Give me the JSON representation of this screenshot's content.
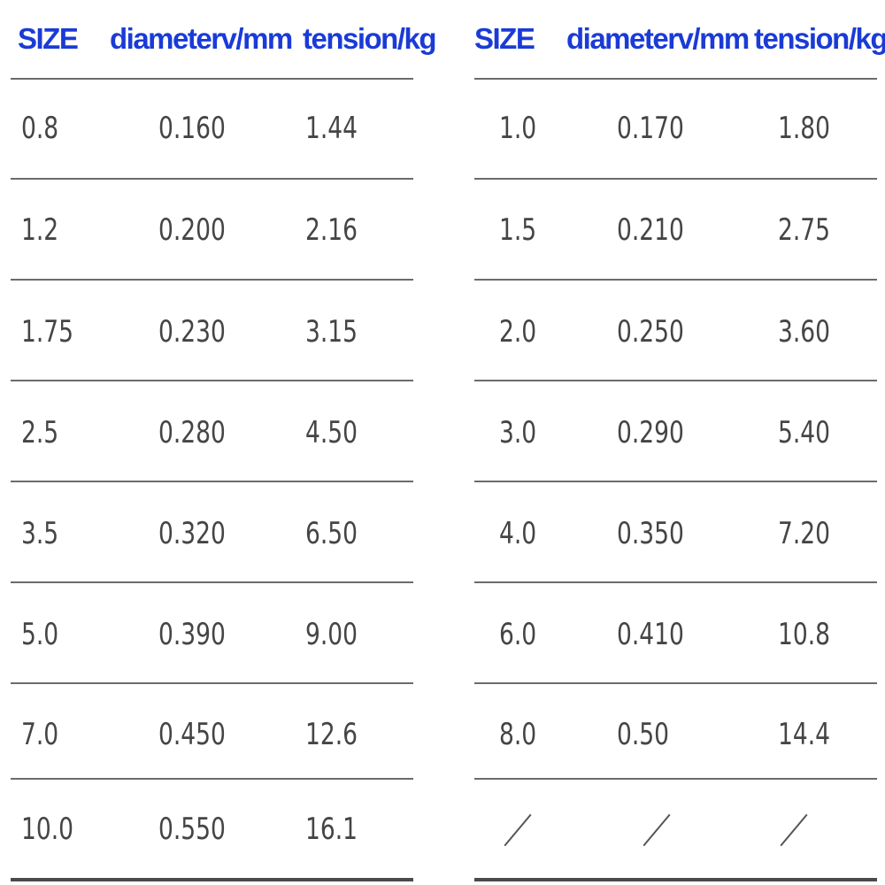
{
  "columns": [
    "SIZE",
    "diameterv/mm",
    "tension/kg"
  ],
  "left_table": {
    "rows": [
      [
        "0.8",
        "0.160",
        "1.44"
      ],
      [
        "1.2",
        "0.200",
        "2.16"
      ],
      [
        "1.75",
        "0.230",
        "3.15"
      ],
      [
        "2.5",
        "0.280",
        "4.50"
      ],
      [
        "3.5",
        "0.320",
        "6.50"
      ],
      [
        "5.0",
        "0.390",
        "9.00"
      ],
      [
        "7.0",
        "0.450",
        "12.6"
      ],
      [
        "10.0",
        "0.550",
        "16.1"
      ]
    ]
  },
  "right_table": {
    "rows": [
      [
        "1.0",
        "0.170",
        "1.80"
      ],
      [
        "1.5",
        "0.210",
        "2.75"
      ],
      [
        "2.0",
        "0.250",
        "3.60"
      ],
      [
        "3.0",
        "0.290",
        "5.40"
      ],
      [
        "4.0",
        "0.350",
        "7.20"
      ],
      [
        "6.0",
        "0.410",
        "10.8"
      ],
      [
        "8.0",
        "0.50",
        "14.4"
      ],
      [
        "/",
        "/",
        "/"
      ]
    ]
  },
  "colors": {
    "header": "#1a3bd6",
    "cell_text": "#454545",
    "rule": "#6b6b6b"
  }
}
